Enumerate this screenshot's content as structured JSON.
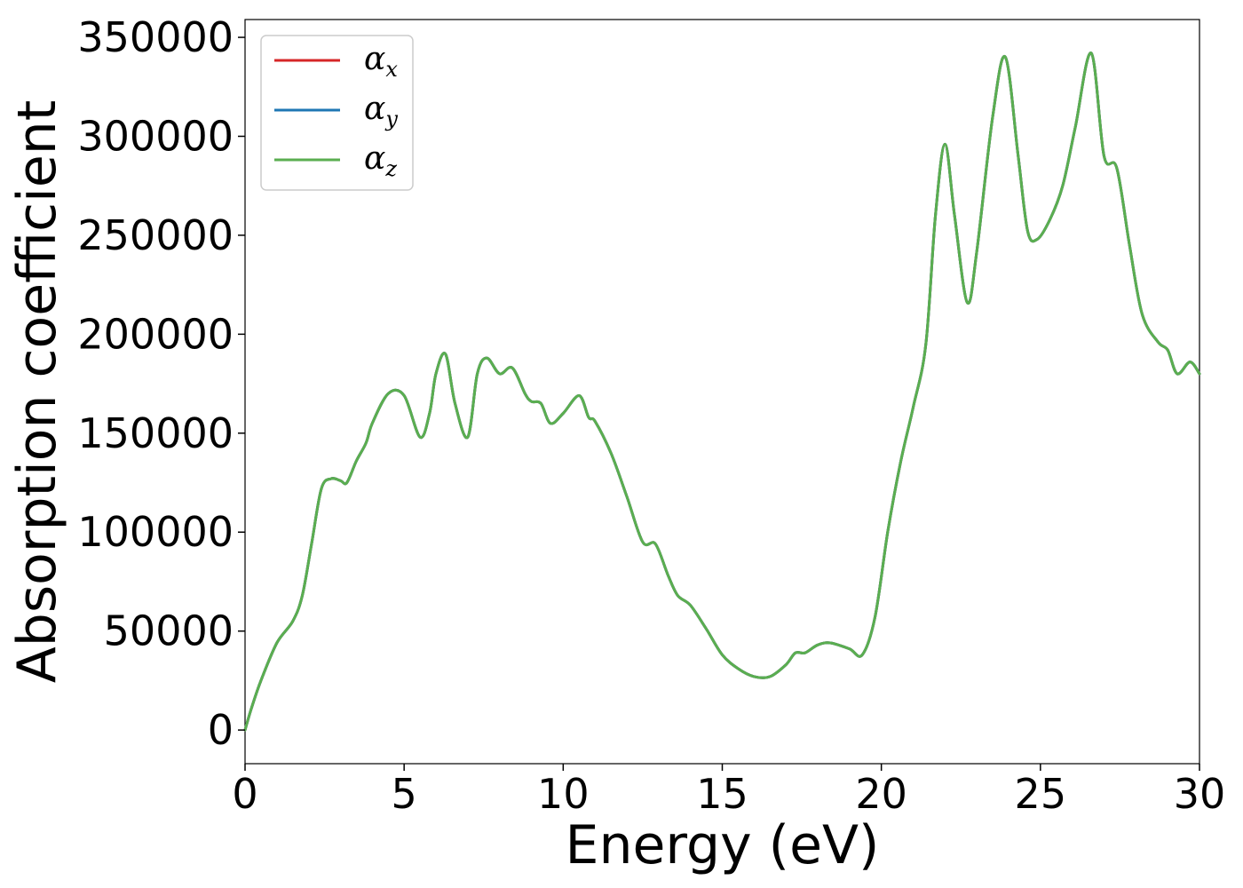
{
  "chart_data": {
    "type": "line",
    "xlabel": "Energy (eV)",
    "ylabel": "Absorption coefficient",
    "xlim": [
      0,
      30
    ],
    "ylim": [
      -17000,
      359000
    ],
    "xticks": [
      0,
      5,
      10,
      15,
      20,
      25,
      30
    ],
    "yticks": [
      0,
      50000,
      100000,
      150000,
      200000,
      250000,
      300000,
      350000
    ],
    "grid": false,
    "legend_position": "top-left",
    "x": [
      0,
      0.2,
      0.5,
      1.0,
      1.5,
      1.8,
      2.1,
      2.4,
      2.7,
      3.0,
      3.2,
      3.5,
      3.8,
      4.0,
      4.5,
      5.0,
      5.5,
      5.8,
      6.0,
      6.3,
      6.6,
      7.0,
      7.3,
      7.6,
      8.0,
      8.4,
      8.8,
      9.0,
      9.3,
      9.6,
      10.0,
      10.5,
      10.8,
      11.0,
      11.5,
      12.0,
      12.5,
      12.9,
      13.3,
      13.6,
      14.0,
      14.5,
      15.0,
      15.5,
      16.0,
      16.5,
      17.0,
      17.3,
      17.6,
      18.0,
      18.4,
      19.0,
      19.4,
      19.8,
      20.2,
      20.6,
      21.0,
      21.4,
      21.7,
      22.0,
      22.3,
      22.7,
      23.0,
      23.5,
      23.9,
      24.3,
      24.6,
      24.9,
      25.3,
      25.7,
      26.1,
      26.6,
      27.0,
      27.4,
      27.8,
      28.2,
      28.7,
      29.0,
      29.3,
      29.7,
      30.0
    ],
    "series": [
      {
        "name": "x",
        "color": "#d62728",
        "values": [
          0,
          11000,
          25000,
          44000,
          55000,
          68000,
          95000,
          122000,
          127000,
          126000,
          125000,
          136000,
          145000,
          155000,
          170000,
          169000,
          148000,
          160000,
          180000,
          190000,
          165000,
          148000,
          180000,
          188000,
          180000,
          183000,
          170000,
          166000,
          165000,
          155000,
          160000,
          169000,
          158000,
          156000,
          140000,
          118000,
          95000,
          94000,
          78000,
          68000,
          63000,
          51000,
          38000,
          31000,
          27000,
          27000,
          33000,
          39000,
          39000,
          43000,
          44000,
          41000,
          38000,
          57000,
          100000,
          135000,
          163000,
          195000,
          260000,
          296000,
          260000,
          216000,
          242000,
          310000,
          340000,
          290000,
          252000,
          248000,
          258000,
          275000,
          305000,
          342000,
          290000,
          284000,
          245000,
          210000,
          196000,
          192000,
          180000,
          186000,
          180000
        ]
      },
      {
        "name": "y",
        "color": "#1f77b4",
        "values": [
          0,
          11000,
          25000,
          44000,
          55000,
          68000,
          95000,
          122000,
          127000,
          126000,
          125000,
          136000,
          145000,
          155000,
          170000,
          169000,
          148000,
          160000,
          180000,
          190000,
          165000,
          148000,
          180000,
          188000,
          180000,
          183000,
          170000,
          166000,
          165000,
          155000,
          160000,
          169000,
          158000,
          156000,
          140000,
          118000,
          95000,
          94000,
          78000,
          68000,
          63000,
          51000,
          38000,
          31000,
          27000,
          27000,
          33000,
          39000,
          39000,
          43000,
          44000,
          41000,
          38000,
          57000,
          100000,
          135000,
          163000,
          195000,
          260000,
          296000,
          260000,
          216000,
          242000,
          310000,
          340000,
          290000,
          252000,
          248000,
          258000,
          275000,
          305000,
          342000,
          290000,
          284000,
          245000,
          210000,
          196000,
          192000,
          180000,
          186000,
          180000
        ]
      },
      {
        "name": "z",
        "color": "#5aae50",
        "values": [
          0,
          11000,
          25000,
          44000,
          55000,
          68000,
          95000,
          122000,
          127000,
          126000,
          125000,
          136000,
          145000,
          155000,
          170000,
          169000,
          148000,
          160000,
          180000,
          190000,
          165000,
          148000,
          180000,
          188000,
          180000,
          183000,
          170000,
          166000,
          165000,
          155000,
          160000,
          169000,
          158000,
          156000,
          140000,
          118000,
          95000,
          94000,
          78000,
          68000,
          63000,
          51000,
          38000,
          31000,
          27000,
          27000,
          33000,
          39000,
          39000,
          43000,
          44000,
          41000,
          38000,
          57000,
          100000,
          135000,
          163000,
          195000,
          260000,
          296000,
          260000,
          216000,
          242000,
          310000,
          340000,
          290000,
          252000,
          248000,
          258000,
          275000,
          305000,
          342000,
          290000,
          284000,
          245000,
          210000,
          196000,
          192000,
          180000,
          186000,
          180000
        ]
      }
    ],
    "legend": [
      {
        "symbol": "α",
        "sub": "x",
        "color": "#d62728"
      },
      {
        "symbol": "α",
        "sub": "y",
        "color": "#1f77b4"
      },
      {
        "symbol": "α",
        "sub": "z",
        "color": "#5aae50"
      }
    ]
  }
}
